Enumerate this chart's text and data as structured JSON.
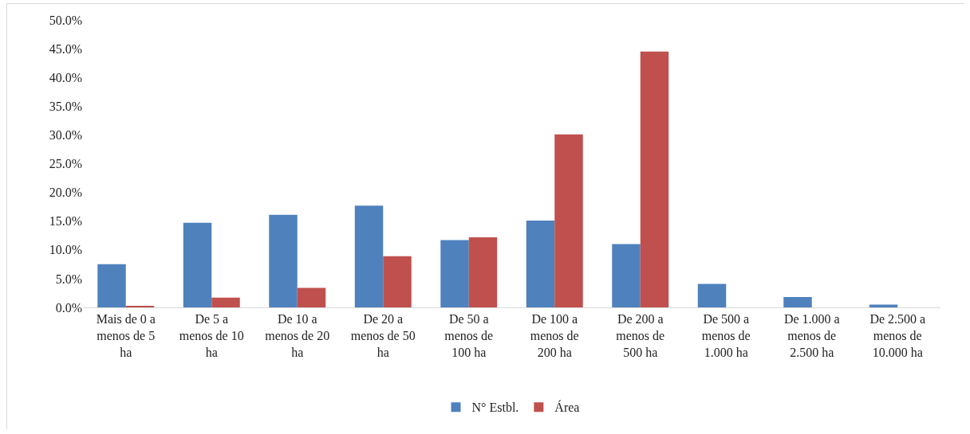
{
  "chart_data": {
    "type": "bar",
    "categories": [
      "Mais de 0 a menos de 5 ha",
      "De 5 a menos de 10 ha",
      "De 10 a menos de 20 ha",
      "De 20 a menos de 50 ha",
      "De 50 a menos de 100 ha",
      "De 100 a menos de 200 ha",
      "De 200 a menos de 500 ha",
      "De 500 a menos de 1.000 ha",
      "De 1.000 a menos de 2.500 ha",
      "De 2.500 a menos de 10.000 ha"
    ],
    "series": [
      {
        "name": "N° Estbl.",
        "color": "#4f81bd",
        "values": [
          7.5,
          14.7,
          16.1,
          17.7,
          11.7,
          15.1,
          11.0,
          4.1,
          1.8,
          0.5
        ]
      },
      {
        "name": "Área",
        "color": "#c0504d",
        "values": [
          0.2,
          1.7,
          3.4,
          8.9,
          12.2,
          30.1,
          44.5,
          0,
          0,
          0
        ]
      }
    ],
    "ylim": [
      0,
      50
    ],
    "yticks": [
      {
        "value": 0,
        "label": "0.0%"
      },
      {
        "value": 5,
        "label": "5.0%"
      },
      {
        "value": 10,
        "label": "10.0%"
      },
      {
        "value": 15,
        "label": "15.0%"
      },
      {
        "value": 20,
        "label": "20.0%"
      },
      {
        "value": 25,
        "label": "25.0%"
      },
      {
        "value": 30,
        "label": "30.0%"
      },
      {
        "value": 35,
        "label": "35.0%"
      },
      {
        "value": 40,
        "label": "40.0%"
      },
      {
        "value": 45,
        "label": "45.0%"
      },
      {
        "value": 50,
        "label": "50.0%"
      }
    ],
    "grid": false,
    "legend": "bottom"
  }
}
